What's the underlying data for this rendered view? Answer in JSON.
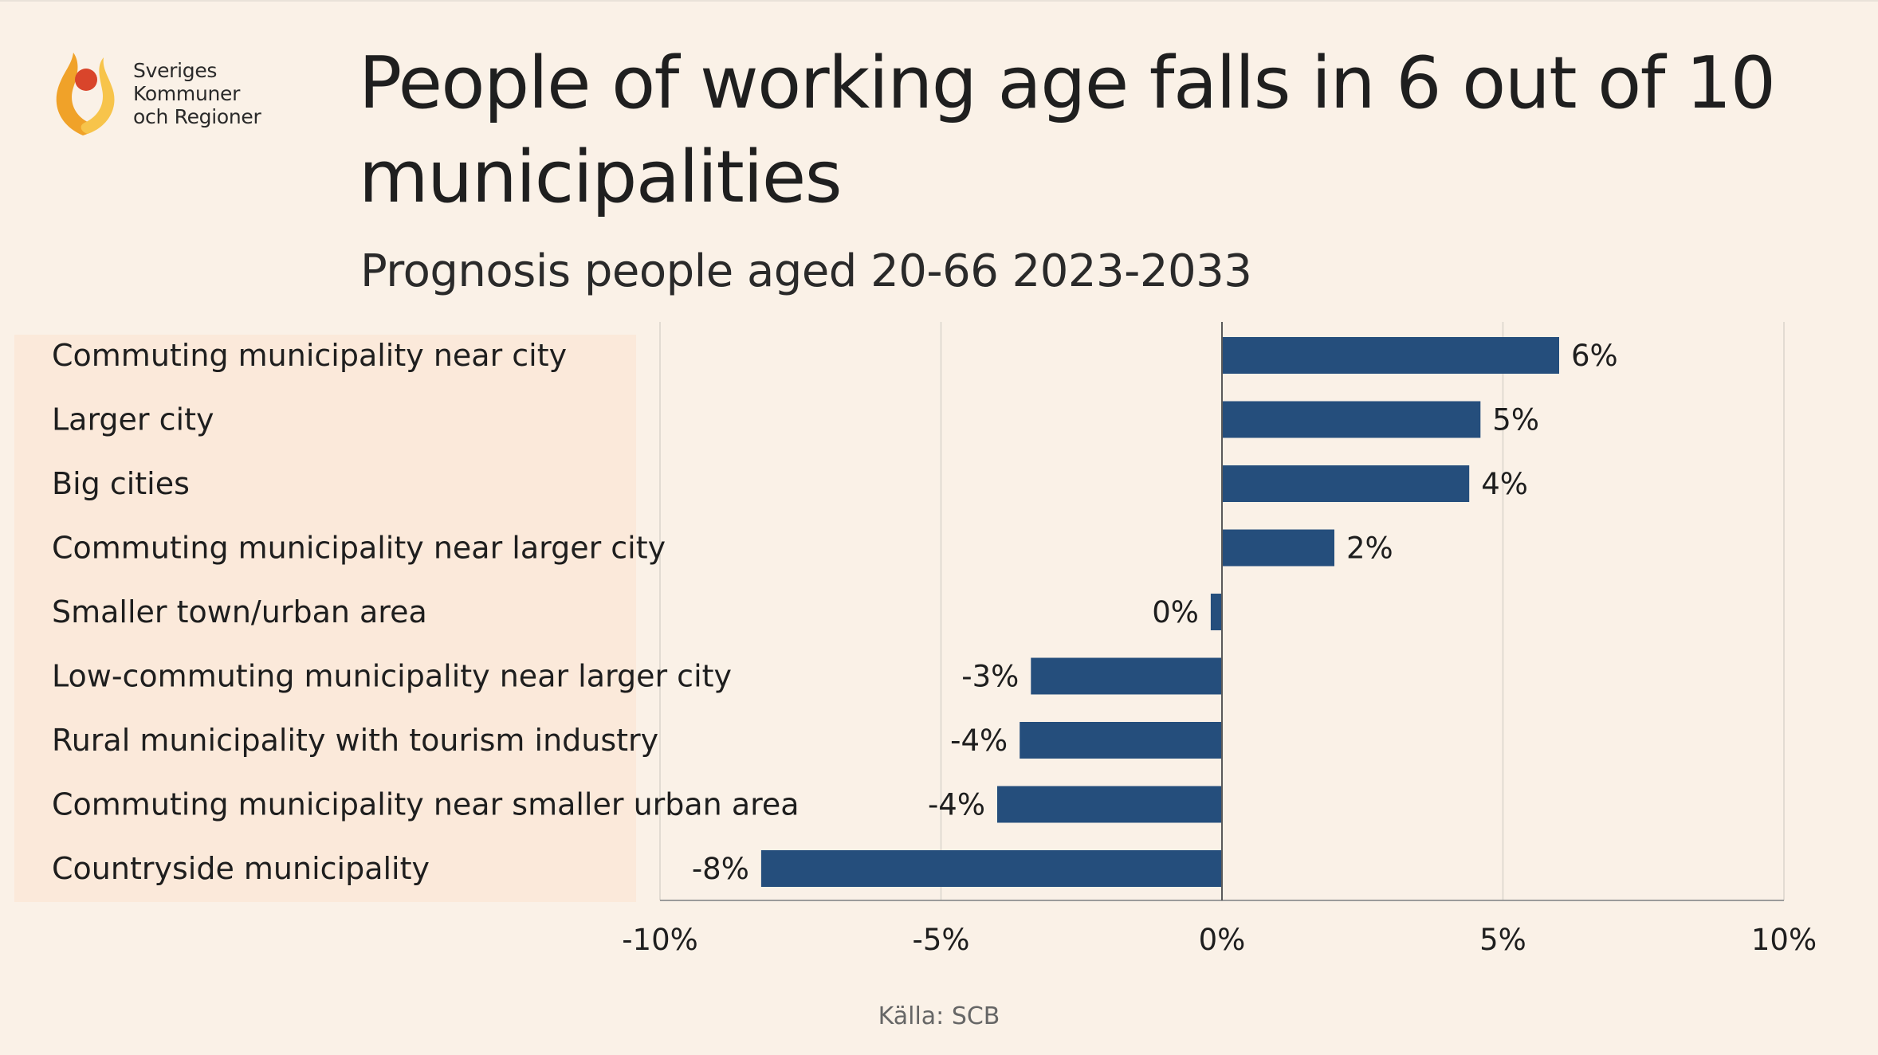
{
  "logo": {
    "lines": [
      "Sveriges",
      "Kommuner",
      "och Regioner"
    ],
    "colors": {
      "orange": "#f0a229",
      "red": "#d9452b",
      "yellow": "#f7c44b"
    }
  },
  "header": {
    "title": "People of working age falls in 6 out of 10 municipalities",
    "subtitle": "Prognosis people aged 20-66 2023-2033"
  },
  "footer": {
    "source": "Källa: SCB"
  },
  "chart_data": {
    "type": "bar",
    "orientation": "horizontal",
    "categories": [
      "Commuting municipality near city",
      "Larger city",
      "Big cities",
      "Commuting municipality near larger city",
      "Smaller town/urban area",
      "Low-commuting municipality near larger city",
      "Rural municipality with tourism industry",
      "Commuting municipality near smaller urban area",
      "Countryside municipality"
    ],
    "values": [
      6.0,
      4.6,
      4.4,
      2.0,
      -0.2,
      -3.4,
      -3.6,
      -4.0,
      -8.2
    ],
    "data_labels": [
      "6%",
      "5%",
      "4%",
      "2%",
      "0%",
      "-3%",
      "-4%",
      "-4%",
      "-8%"
    ],
    "xlim": [
      -10,
      10
    ],
    "xticks": [
      -10,
      -5,
      0,
      5,
      10
    ],
    "xtick_labels": [
      "-10%",
      "-5%",
      "0%",
      "5%",
      "10%"
    ],
    "grid": true,
    "bar_color": "#254e7c"
  }
}
